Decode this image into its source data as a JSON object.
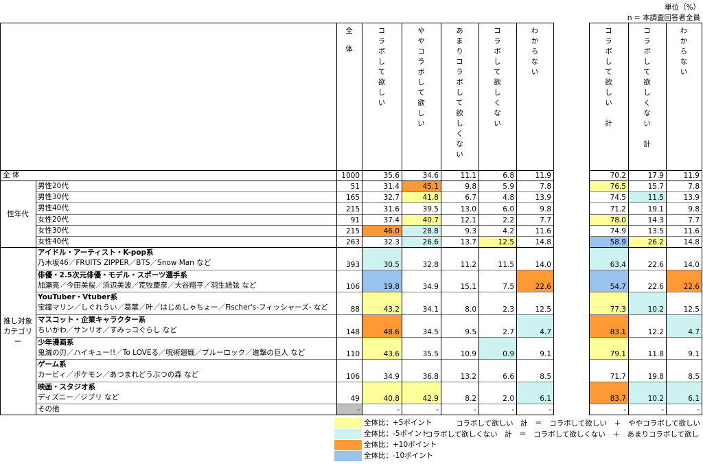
{
  "unit": "単位（%）",
  "n": "n = 本調査回答者全員",
  "columns": [
    "全体",
    "コラボして欲しい",
    "ややコラボして欲しい",
    "あまりコラボして欲しくない",
    "コラボして欲しくない",
    "わからない"
  ],
  "sum_columns": [
    "コラボして欲しい　計",
    "コラボして欲しくない　計",
    "わからない"
  ],
  "total": {
    "label": "全 体",
    "values": [
      "1000",
      "35.6",
      "34.6",
      "11.1",
      "6.8",
      "11.9"
    ],
    "sums": [
      "70.2",
      "17.9",
      "11.9"
    ]
  },
  "groups": [
    {
      "label": "性年代",
      "rows": [
        {
          "name": "男性20代",
          "values": [
            "51",
            "31.4",
            "45.1",
            "9.8",
            "5.9",
            "7.8"
          ],
          "sums": [
            "76.5",
            "15.7",
            "7.8"
          ],
          "colors": [
            null,
            null,
            "#ff9933",
            null,
            null,
            null
          ],
          "sum_colors": [
            "#ffff99",
            null,
            null
          ]
        },
        {
          "name": "男性30代",
          "values": [
            "165",
            "32.7",
            "41.8",
            "6.7",
            "4.8",
            "13.9"
          ],
          "sums": [
            "74.5",
            "11.5",
            "13.9"
          ],
          "colors": [
            null,
            null,
            "#ffff99",
            null,
            null,
            null
          ],
          "sum_colors": [
            null,
            "#ccf2f2",
            null
          ]
        },
        {
          "name": "男性40代",
          "values": [
            "215",
            "31.6",
            "39.5",
            "13.0",
            "6.0",
            "9.8"
          ],
          "sums": [
            "71.2",
            "19.1",
            "9.8"
          ],
          "colors": [
            null,
            null,
            null,
            null,
            null,
            null
          ],
          "sum_colors": [
            null,
            null,
            null
          ]
        },
        {
          "name": "女性20代",
          "values": [
            "91",
            "37.4",
            "40.7",
            "12.1",
            "2.2",
            "7.7"
          ],
          "sums": [
            "78.0",
            "14.3",
            "7.7"
          ],
          "colors": [
            null,
            null,
            "#ffff99",
            null,
            null,
            null
          ],
          "sum_colors": [
            "#ffff99",
            null,
            null
          ]
        },
        {
          "name": "女性30代",
          "values": [
            "215",
            "46.0",
            "28.8",
            "9.3",
            "4.2",
            "11.6"
          ],
          "sums": [
            "74.9",
            "13.5",
            "11.6"
          ],
          "colors": [
            null,
            "#ff9933",
            "#ccf2f2",
            null,
            null,
            null
          ],
          "sum_colors": [
            null,
            null,
            null
          ]
        },
        {
          "name": "女性40代",
          "values": [
            "263",
            "32.3",
            "26.6",
            "13.7",
            "12.5",
            "14.8"
          ],
          "sums": [
            "58.9",
            "26.2",
            "14.8"
          ],
          "colors": [
            null,
            null,
            "#ccf2f2",
            null,
            "#ffff99",
            null
          ],
          "sum_colors": [
            "#99c2ee",
            "#ffff99",
            null
          ]
        }
      ]
    },
    {
      "label": "推し対象カテゴリー",
      "rows": [
        {
          "name": "アイドル・アーティスト・K-pop系",
          "sub": "乃木坂46／FRUITS ZIPPER／BTS／Snow Man など",
          "values": [
            "393",
            "30.5",
            "32.8",
            "11.2",
            "11.5",
            "14.0"
          ],
          "sums": [
            "63.4",
            "22.6",
            "14.0"
          ],
          "colors": [
            null,
            "#ccf2f2",
            null,
            null,
            null,
            null
          ],
          "sum_colors": [
            "#ccf2f2",
            null,
            null
          ]
        },
        {
          "name": "俳優・2.5次元俳優・モデル・スポーツ選手系",
          "sub": "加瀬亮／今田美桜／浜辺美波／荒牧慶彦／大谷翔平／羽生結弦 など",
          "values": [
            "106",
            "19.8",
            "34.9",
            "15.1",
            "7.5",
            "22.6"
          ],
          "sums": [
            "54.7",
            "22.6",
            "22.6"
          ],
          "colors": [
            null,
            "#99c2ee",
            null,
            null,
            null,
            "#ff9933"
          ],
          "sum_colors": [
            "#99c2ee",
            null,
            "#ff9933"
          ]
        },
        {
          "name": "YouTuber・Vtuber系",
          "sub": "宝鐘マリン／しぐれうい／葛葉／叶／はじめしゃちょー／Fischer's-フィッシャーズ- など",
          "values": [
            "88",
            "43.2",
            "34.1",
            "8.0",
            "2.3",
            "12.5"
          ],
          "sums": [
            "77.3",
            "10.2",
            "12.5"
          ],
          "colors": [
            null,
            "#ffff99",
            null,
            null,
            null,
            null
          ],
          "sum_colors": [
            "#ffff99",
            "#ccf2f2",
            null
          ]
        },
        {
          "name": "マスコット・企業キャラクター系",
          "sub": "ちいかわ／サンリオ／すみっコぐらし など",
          "values": [
            "148",
            "48.6",
            "34.5",
            "9.5",
            "2.7",
            "4.7"
          ],
          "sums": [
            "83.1",
            "12.2",
            "4.7"
          ],
          "colors": [
            null,
            "#ff9933",
            null,
            null,
            null,
            "#ccf2f2"
          ],
          "sum_colors": [
            "#ff9933",
            null,
            "#ccf2f2"
          ]
        },
        {
          "name": "少年漫画系",
          "sub": "鬼滅の刃／ハイキュー!!／To LOVEる／呪術廻戦／ブルーロック／進撃の巨人 など",
          "values": [
            "110",
            "43.6",
            "35.5",
            "10.9",
            "0.9",
            "9.1"
          ],
          "sums": [
            "79.1",
            "11.8",
            "9.1"
          ],
          "colors": [
            null,
            "#ffff99",
            null,
            null,
            "#ccf2f2",
            null
          ],
          "sum_colors": [
            "#ffff99",
            null,
            null
          ]
        },
        {
          "name": "ゲーム系",
          "sub": "カービィ／ポケモン／あつまれどうぶつの森 など",
          "values": [
            "106",
            "34.9",
            "36.8",
            "13.2",
            "6.6",
            "8.5"
          ],
          "sums": [
            "71.7",
            "19.8",
            "8.5"
          ],
          "colors": [
            null,
            null,
            null,
            null,
            null,
            null
          ],
          "sum_colors": [
            null,
            null,
            null
          ]
        },
        {
          "name": "映画・スタジオ系",
          "sub": "ディズニー／ジブリ など",
          "values": [
            "49",
            "40.8",
            "42.9",
            "8.2",
            "2.0",
            "6.1"
          ],
          "sums": [
            "83.7",
            "10.2",
            "6.1"
          ],
          "colors": [
            null,
            "#ffff99",
            "#ffff99",
            null,
            null,
            "#ccf2f2"
          ],
          "sum_colors": [
            "#ff9933",
            "#ccf2f2",
            "#ccf2f2"
          ]
        },
        {
          "name": "その他",
          "values": [
            "-",
            "-",
            "-",
            "-",
            "-",
            "-"
          ],
          "sums": [
            "-",
            "-",
            "-"
          ],
          "colors": [
            "#bfbfbf",
            null,
            null,
            null,
            null,
            null
          ],
          "sum_colors": [
            null,
            null,
            null
          ]
        }
      ]
    }
  ],
  "legend": [
    {
      "label": "全体比：+5ポイント",
      "color": "#ffff99"
    },
    {
      "label": "全体比：-5ポイント",
      "color": "#ccf2f2"
    },
    {
      "label": "全体比：+10ポイント",
      "color": "#ff9933"
    },
    {
      "label": "全体比：-10ポイント",
      "color": "#99c2ee"
    }
  ],
  "notes": [
    "コラボして欲しい　計　＝　コラボして欲しい　＋　ややコラボして欲しい",
    "コラボして欲しくない　計　＝　コラボして欲しくない　＋　あまりコラボして欲しくない"
  ]
}
